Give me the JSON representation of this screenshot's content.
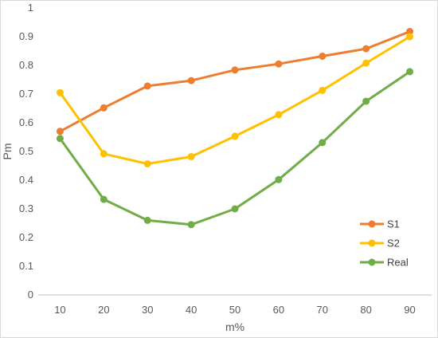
{
  "chart_data": {
    "type": "line",
    "title": "",
    "xlabel": "m%",
    "ylabel": "Pm",
    "x": [
      10,
      20,
      30,
      40,
      50,
      60,
      70,
      80,
      90
    ],
    "x_ticks": [
      "10",
      "20",
      "30",
      "40",
      "50",
      "60",
      "70",
      "80",
      "90"
    ],
    "y_ticks": [
      "0",
      "0.1",
      "0.2",
      "0.3",
      "0.4",
      "0.5",
      "0.6",
      "0.7",
      "0.8",
      "0.9",
      "1"
    ],
    "ylim": [
      0,
      1
    ],
    "grid": false,
    "legend_position": "bottom-right",
    "series": [
      {
        "name": "S1",
        "color": "#ED7D31",
        "values": [
          0.57,
          0.652,
          0.728,
          0.747,
          0.784,
          0.805,
          0.832,
          0.858,
          0.918
        ]
      },
      {
        "name": "S2",
        "color": "#FFC000",
        "values": [
          0.705,
          0.492,
          0.457,
          0.482,
          0.553,
          0.628,
          0.713,
          0.808,
          0.9
        ]
      },
      {
        "name": "Real",
        "color": "#70AD47",
        "values": [
          0.545,
          0.333,
          0.26,
          0.245,
          0.3,
          0.402,
          0.531,
          0.675,
          0.778
        ]
      }
    ]
  }
}
